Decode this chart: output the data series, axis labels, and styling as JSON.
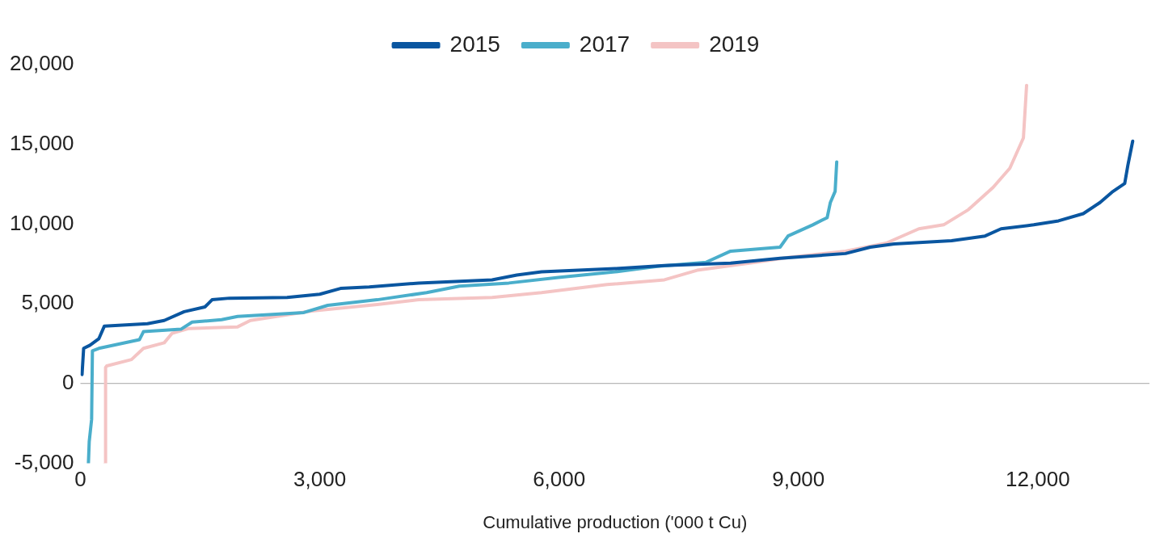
{
  "chart_data": {
    "type": "line",
    "xlabel": "Cumulative production ('000 t Cu)",
    "xlim": [
      0,
      13400
    ],
    "xticks": [
      {
        "value": 0,
        "label": "0"
      },
      {
        "value": 3000,
        "label": "3,000"
      },
      {
        "value": 6000,
        "label": "6,000"
      },
      {
        "value": 9000,
        "label": "9,000"
      },
      {
        "value": 12000,
        "label": "12,000"
      }
    ],
    "ylim": [
      -5000,
      20000
    ],
    "yticks": [
      {
        "value": -5000,
        "label": "-5,000"
      },
      {
        "value": 0,
        "label": "0"
      },
      {
        "value": 5000,
        "label": "5,000"
      },
      {
        "value": 10000,
        "label": "10,000"
      },
      {
        "value": 15000,
        "label": "15,000"
      },
      {
        "value": 20000,
        "label": "20,000"
      }
    ],
    "grid": false,
    "ref_lines": [
      {
        "axis": "y",
        "value": 0,
        "color": "#a6a6a6"
      }
    ],
    "legend": "top",
    "marker": "none",
    "line_style": "solid",
    "series": [
      {
        "name": "2015",
        "color": "#0a56a0",
        "x": [
          20,
          40,
          120,
          230,
          300,
          840,
          1050,
          1300,
          1560,
          1650,
          1870,
          2590,
          3000,
          3260,
          3620,
          4240,
          5160,
          5470,
          5780,
          6700,
          7320,
          8150,
          8770,
          9590,
          9900,
          10200,
          10920,
          11340,
          11540,
          11950,
          12260,
          12570,
          12780,
          12930,
          13090,
          13130,
          13190
        ],
        "values": [
          560,
          2200,
          2400,
          2800,
          3600,
          3750,
          3950,
          4500,
          4800,
          5250,
          5350,
          5400,
          5600,
          5960,
          6050,
          6300,
          6500,
          6800,
          7000,
          7200,
          7400,
          7550,
          7850,
          8150,
          8550,
          8750,
          8950,
          9250,
          9700,
          9950,
          10200,
          10650,
          11350,
          12000,
          12550,
          13700,
          15200
        ]
      },
      {
        "name": "2017",
        "color": "#4aaecb",
        "x": [
          100,
          110,
          140,
          150,
          230,
          740,
          790,
          1260,
          1400,
          1770,
          1970,
          2800,
          3100,
          3720,
          4340,
          4750,
          5370,
          5990,
          6700,
          7230,
          7840,
          8150,
          8770,
          8870,
          9180,
          9360,
          9400,
          9460,
          9480
        ],
        "values": [
          -5000,
          -3650,
          -2250,
          2050,
          2200,
          2750,
          3250,
          3400,
          3850,
          4000,
          4200,
          4450,
          4900,
          5250,
          5700,
          6100,
          6300,
          6650,
          7000,
          7350,
          7600,
          8300,
          8550,
          9250,
          9950,
          10400,
          11350,
          12050,
          13900
        ]
      },
      {
        "name": "2019",
        "color": "#f4c4c4",
        "x": [
          310,
          315,
          330,
          640,
          790,
          1050,
          1150,
          1360,
          1970,
          2130,
          2900,
          3720,
          4240,
          5160,
          5780,
          6600,
          7320,
          7730,
          8460,
          8870,
          9590,
          10100,
          10510,
          10820,
          11130,
          11440,
          11650,
          11820,
          11860
        ],
        "values": [
          -5000,
          1000,
          1100,
          1500,
          2200,
          2550,
          3150,
          3450,
          3550,
          3950,
          4550,
          4950,
          5250,
          5400,
          5700,
          6200,
          6500,
          7100,
          7600,
          7900,
          8300,
          8800,
          9700,
          9950,
          10900,
          12300,
          13500,
          15400,
          18700
        ]
      }
    ]
  }
}
